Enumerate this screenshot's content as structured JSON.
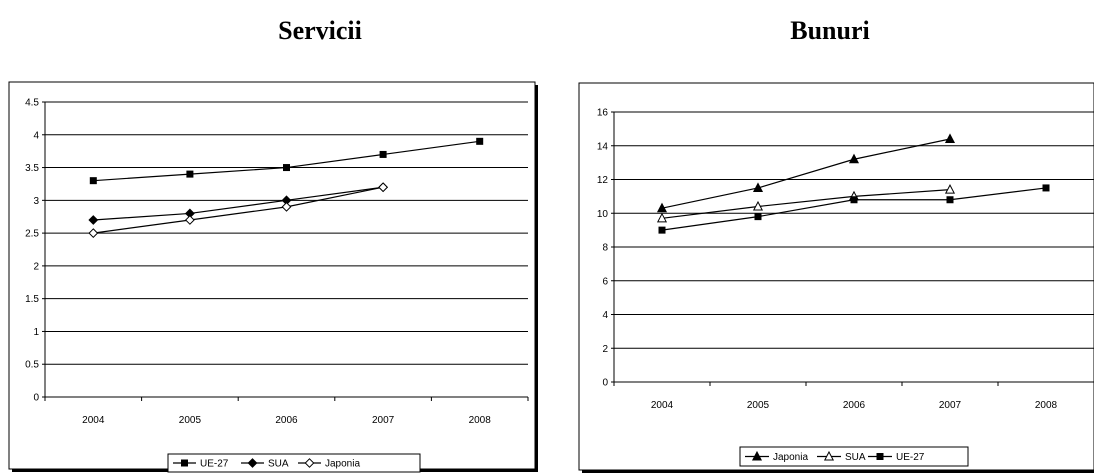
{
  "chart_data": [
    {
      "type": "line",
      "title": "Servicii",
      "categories": [
        "2004",
        "2005",
        "2006",
        "2007",
        "2008"
      ],
      "ylim": [
        0,
        4.5
      ],
      "yticks": [
        "0",
        "0.5",
        "1",
        "1.5",
        "2",
        "2.5",
        "3",
        "3.5",
        "4",
        "4.5"
      ],
      "grid": true,
      "legend": "bottom",
      "series": [
        {
          "name": "UE-27",
          "marker": "square",
          "values": [
            3.3,
            3.4,
            3.5,
            3.7,
            3.9
          ]
        },
        {
          "name": "SUA",
          "marker": "diamond",
          "values": [
            2.7,
            2.8,
            3.0,
            3.2,
            null
          ]
        },
        {
          "name": "Japonia",
          "marker": "diamond-open",
          "values": [
            2.5,
            2.7,
            2.9,
            3.2,
            null
          ]
        }
      ]
    },
    {
      "type": "line",
      "title": "Bunuri",
      "categories": [
        "2004",
        "2005",
        "2006",
        "2007",
        "2008"
      ],
      "ylim": [
        0,
        16
      ],
      "yticks": [
        "0",
        "2",
        "4",
        "6",
        "8",
        "10",
        "12",
        "14",
        "16"
      ],
      "grid": true,
      "legend": "bottom",
      "series": [
        {
          "name": "Japonia",
          "marker": "triangle",
          "values": [
            10.3,
            11.5,
            13.2,
            14.4,
            null
          ]
        },
        {
          "name": "SUA",
          "marker": "triangle-open",
          "values": [
            9.7,
            10.4,
            11.0,
            11.4,
            null
          ]
        },
        {
          "name": "UE-27",
          "marker": "square",
          "values": [
            9.0,
            9.8,
            10.8,
            10.8,
            11.5
          ]
        }
      ]
    }
  ]
}
